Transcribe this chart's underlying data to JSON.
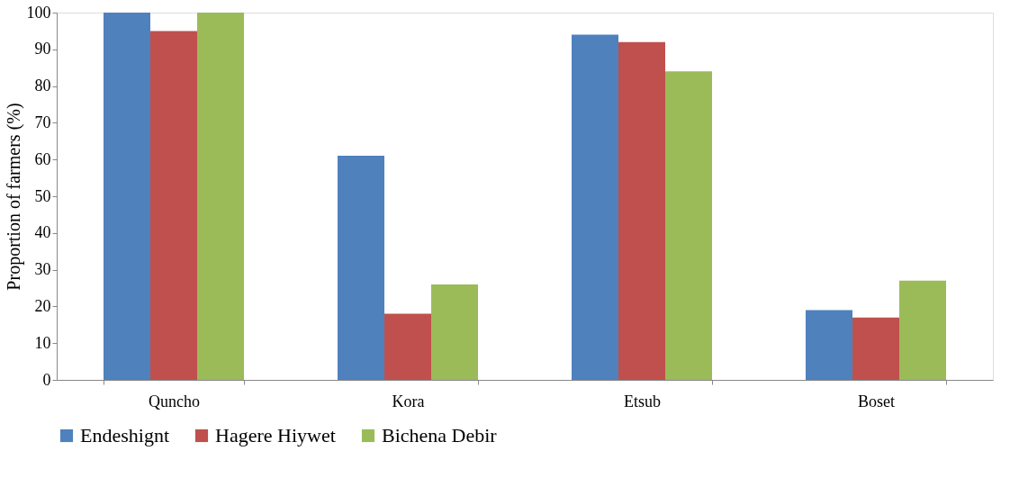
{
  "chart_data": {
    "type": "bar",
    "ylabel": "Proportion of farmers  (%)",
    "categories": [
      "Quncho",
      "Kora",
      "Etsub",
      "Boset"
    ],
    "series": [
      {
        "name": "Endeshignt",
        "color": "#4f81bd",
        "values": [
          100,
          61,
          94,
          19
        ]
      },
      {
        "name": "Hagere Hiywet",
        "color": "#c0504d",
        "values": [
          95,
          18,
          92,
          17
        ]
      },
      {
        "name": "Bichena Debir",
        "color": "#9bbb59",
        "values": [
          100,
          26,
          84,
          27
        ]
      }
    ],
    "ylim": [
      0,
      100
    ],
    "yticks": [
      0,
      10,
      20,
      30,
      40,
      50,
      60,
      70,
      80,
      90,
      100
    ],
    "grid": false,
    "legend": "bottom"
  }
}
